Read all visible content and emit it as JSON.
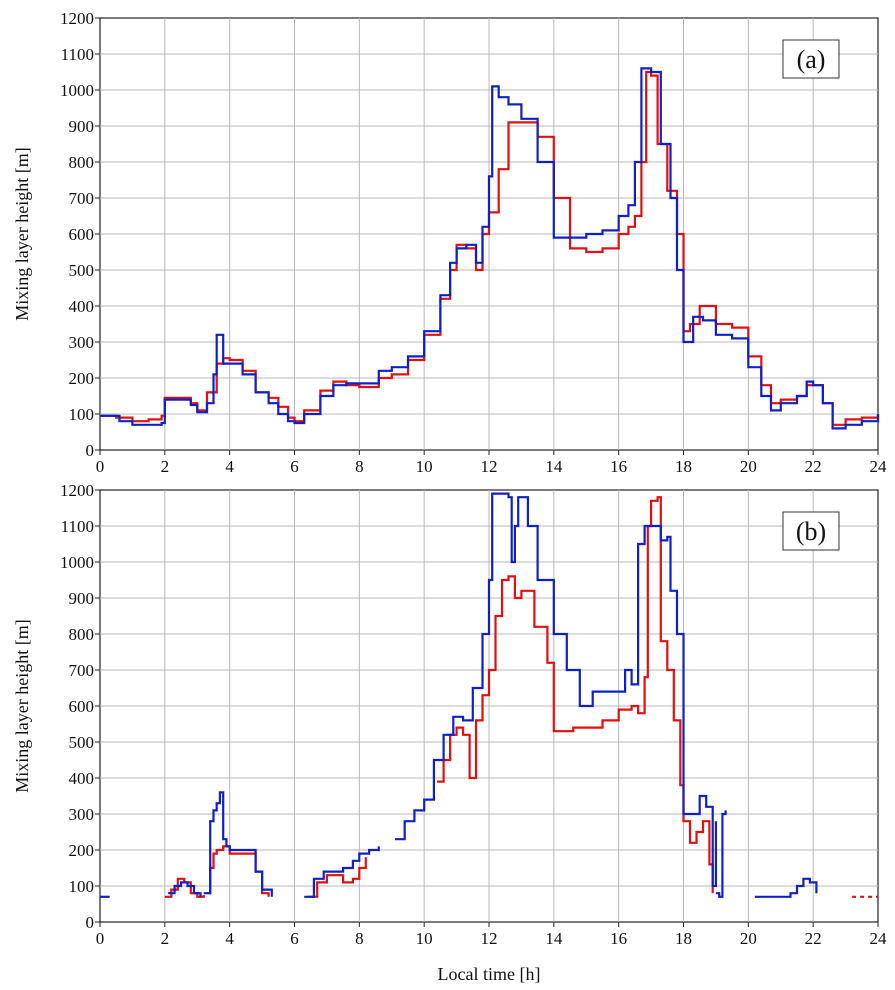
{
  "figure": {
    "xlabel": "Local time [h]"
  },
  "colors": {
    "series_1": "#e01010",
    "series_2": "#1020c8",
    "grid": "#b8b8b8",
    "axis": "#222222"
  },
  "chart_data": [
    {
      "type": "line",
      "panel_label": "(a)",
      "ylabel": "Mixing layer height [m]",
      "xlim": [
        0,
        24
      ],
      "ylim": [
        0,
        1200
      ],
      "xticks": [
        0,
        2,
        4,
        6,
        8,
        10,
        12,
        14,
        16,
        18,
        20,
        22,
        24
      ],
      "yticks": [
        0,
        100,
        200,
        300,
        400,
        500,
        600,
        700,
        800,
        900,
        1000,
        1100,
        1200
      ],
      "grid": true,
      "series": [
        {
          "color": "#e01010",
          "x": [
            0,
            0.5,
            1.0,
            1.5,
            1.9,
            2.0,
            2.5,
            2.8,
            3.0,
            3.3,
            3.6,
            3.8,
            4.0,
            4.4,
            4.8,
            5.2,
            5.5,
            5.8,
            6.0,
            6.3,
            6.8,
            7.2,
            7.6,
            8.0,
            8.6,
            9.0,
            9.5,
            10.0,
            10.5,
            10.8,
            11.0,
            11.3,
            11.6,
            11.8,
            12.0,
            12.3,
            12.6,
            13.0,
            13.5,
            14.0,
            14.5,
            15.0,
            15.5,
            16.0,
            16.3,
            16.5,
            16.7,
            16.85,
            17.0,
            17.2,
            17.5,
            17.8,
            18.0,
            18.2,
            18.5,
            19.0,
            19.5,
            20.0,
            20.4,
            20.7,
            21.0,
            21.5,
            21.8,
            22.0,
            22.3,
            22.6,
            23.0,
            23.5,
            24.0
          ],
          "y": [
            95,
            90,
            80,
            85,
            95,
            145,
            145,
            130,
            110,
            160,
            240,
            255,
            250,
            220,
            160,
            145,
            120,
            90,
            80,
            110,
            165,
            190,
            180,
            175,
            200,
            210,
            250,
            320,
            420,
            500,
            570,
            560,
            500,
            600,
            660,
            780,
            910,
            910,
            870,
            700,
            560,
            550,
            560,
            600,
            620,
            650,
            800,
            1050,
            1040,
            850,
            720,
            600,
            330,
            350,
            400,
            350,
            340,
            260,
            180,
            130,
            140,
            150,
            180,
            180,
            130,
            70,
            85,
            90,
            100
          ]
        },
        {
          "color": "#1020c8",
          "x": [
            0,
            0.3,
            0.6,
            1.0,
            1.5,
            1.9,
            2.0,
            2.5,
            2.8,
            3.0,
            3.3,
            3.5,
            3.6,
            3.8,
            4.0,
            4.4,
            4.8,
            5.2,
            5.5,
            5.8,
            6.0,
            6.3,
            6.8,
            7.2,
            7.6,
            8.0,
            8.6,
            9.0,
            9.5,
            10.0,
            10.5,
            10.8,
            11.0,
            11.3,
            11.6,
            11.8,
            12.0,
            12.1,
            12.3,
            12.6,
            13.0,
            13.5,
            14.0,
            14.5,
            15.0,
            15.5,
            16.0,
            16.3,
            16.5,
            16.7,
            17.0,
            17.3,
            17.6,
            17.8,
            18.0,
            18.3,
            18.6,
            19.0,
            19.5,
            20.0,
            20.4,
            20.7,
            21.0,
            21.5,
            21.8,
            22.0,
            22.3,
            22.6,
            23.0,
            23.5,
            24.0
          ],
          "y": [
            95,
            95,
            80,
            70,
            70,
            75,
            140,
            140,
            125,
            105,
            130,
            210,
            320,
            240,
            240,
            210,
            160,
            130,
            100,
            80,
            75,
            100,
            150,
            180,
            185,
            185,
            220,
            230,
            260,
            330,
            430,
            520,
            560,
            570,
            520,
            620,
            760,
            1010,
            980,
            960,
            920,
            800,
            590,
            590,
            600,
            610,
            650,
            680,
            800,
            1060,
            1050,
            850,
            700,
            500,
            300,
            370,
            360,
            320,
            310,
            230,
            150,
            110,
            130,
            150,
            190,
            180,
            130,
            60,
            70,
            80,
            100
          ]
        }
      ]
    },
    {
      "type": "line",
      "panel_label": "(b)",
      "ylabel": "Mixing layer height [m]",
      "xlabel": "Local time [h]",
      "xlim": [
        0,
        24
      ],
      "ylim": [
        0,
        1200
      ],
      "xticks": [
        0,
        2,
        4,
        6,
        8,
        10,
        12,
        14,
        16,
        18,
        20,
        22,
        24
      ],
      "yticks": [
        0,
        100,
        200,
        300,
        400,
        500,
        600,
        700,
        800,
        900,
        1000,
        1100,
        1200
      ],
      "grid": true,
      "series": [
        {
          "color": "#e01010",
          "segments": [
            {
              "x": [
                2.0,
                2.2,
                2.4,
                2.6,
                2.8,
                3.0,
                3.2
              ],
              "y": [
                70,
                90,
                120,
                110,
                80,
                70,
                75
              ]
            },
            {
              "x": [
                3.3,
                3.4,
                3.5,
                3.6,
                3.8,
                4.0,
                4.5,
                4.8,
                5.0,
                5.2
              ],
              "y": [
                80,
                150,
                190,
                200,
                210,
                190,
                190,
                140,
                80,
                70
              ]
            },
            {
              "x": [
                6.4,
                6.7,
                7.0,
                7.3,
                7.5,
                7.8,
                8.0,
                8.2
              ],
              "y": [
                70,
                110,
                130,
                130,
                110,
                120,
                150,
                180
              ]
            },
            {
              "x": [
                10.4,
                10.6,
                10.8,
                11.0,
                11.2,
                11.4,
                11.6,
                11.8,
                12.0,
                12.2,
                12.4,
                12.6,
                12.8,
                13.0,
                13.4,
                13.8,
                14.0,
                14.3,
                14.6,
                15.0,
                15.5,
                16.0,
                16.4,
                16.6,
                16.8,
                16.9,
                17.0,
                17.2,
                17.3,
                17.5,
                17.7,
                17.9,
                18.0,
                18.2,
                18.4,
                18.6,
                18.8,
                18.9
              ],
              "y": [
                390,
                450,
                520,
                540,
                520,
                400,
                560,
                630,
                700,
                850,
                950,
                960,
                900,
                920,
                820,
                720,
                530,
                530,
                540,
                540,
                560,
                590,
                600,
                580,
                680,
                1100,
                1170,
                1180,
                780,
                700,
                560,
                380,
                280,
                220,
                250,
                280,
                160,
                80
              ]
            }
          ]
        },
        {
          "color": "#1020c8",
          "segments": [
            {
              "x": [
                0.0,
                0.3
              ],
              "y": [
                70,
                70
              ]
            },
            {
              "x": [
                2.1,
                2.3,
                2.5,
                2.7,
                2.9,
                3.1
              ],
              "y": [
                80,
                100,
                110,
                100,
                80,
                70
              ]
            },
            {
              "x": [
                3.2,
                3.4,
                3.5,
                3.6,
                3.7,
                3.8,
                3.9,
                4.0,
                4.5,
                4.8,
                5.0,
                5.3
              ],
              "y": [
                80,
                280,
                310,
                330,
                360,
                230,
                210,
                200,
                200,
                140,
                90,
                70
              ]
            },
            {
              "x": [
                6.3,
                6.6,
                6.9,
                7.2,
                7.5,
                7.8,
                8.0,
                8.3,
                8.6
              ],
              "y": [
                70,
                120,
                140,
                140,
                150,
                170,
                190,
                200,
                210
              ]
            },
            {
              "x": [
                9.1,
                9.4,
                9.7,
                10.0,
                10.3,
                10.6,
                10.9,
                11.2,
                11.5,
                11.8,
                12.0,
                12.1,
                12.6,
                12.7,
                12.8,
                12.9,
                13.2,
                13.5,
                14.0,
                14.4,
                14.8,
                15.2,
                15.6,
                16.0,
                16.2,
                16.4,
                16.6,
                16.8,
                17.0,
                17.3,
                17.5,
                17.6,
                17.8,
                18.0,
                18.3,
                18.5,
                18.7,
                18.9,
                19.0
              ],
              "y": [
                230,
                280,
                310,
                340,
                450,
                520,
                570,
                560,
                650,
                800,
                950,
                1190,
                1180,
                1000,
                1100,
                1180,
                1100,
                950,
                800,
                700,
                600,
                640,
                640,
                640,
                700,
                660,
                1050,
                1100,
                1100,
                1060,
                1070,
                920,
                800,
                300,
                300,
                350,
                320,
                100,
                280
              ]
            },
            {
              "x": [
                19.0,
                19.1,
                19.2,
                19.3
              ],
              "y": [
                80,
                70,
                300,
                310
              ]
            },
            {
              "x": [
                20.2,
                20.5,
                21.0,
                21.3,
                21.5,
                21.7,
                21.9,
                22.1
              ],
              "y": [
                70,
                70,
                70,
                80,
                100,
                120,
                110,
                80
              ]
            }
          ]
        },
        {
          "color": "#e01010",
          "style": "dotted",
          "segments": [
            {
              "x": [
                23.2,
                24.0
              ],
              "y": [
                70,
                70
              ]
            }
          ]
        }
      ]
    }
  ]
}
